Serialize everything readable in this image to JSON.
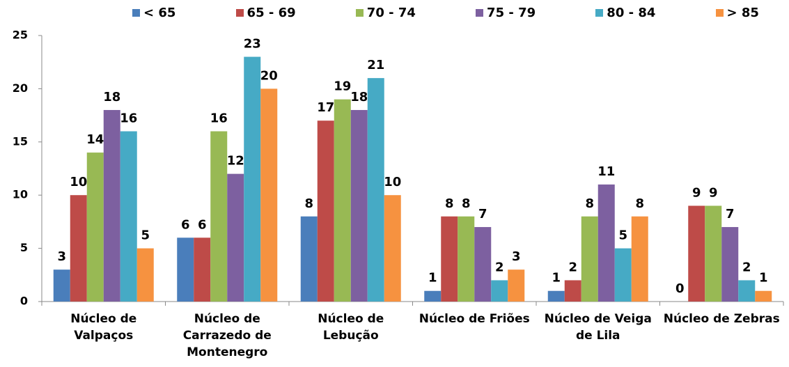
{
  "chart_data": {
    "type": "bar",
    "categories": [
      "Núcleo de Valpaços",
      "Núcleo de Carrazedo de Montenegro",
      "Núcleo de Lebução",
      "Núcleo de Friões",
      "Núcleo de Veiga de Lila",
      "Núcleo de Zebras"
    ],
    "series": [
      {
        "name": "< 65",
        "color": "#4a7ebb",
        "values": [
          3,
          6,
          8,
          1,
          1,
          0
        ]
      },
      {
        "name": "65 - 69",
        "color": "#be4b48",
        "values": [
          10,
          6,
          17,
          8,
          2,
          9
        ]
      },
      {
        "name": "70 - 74",
        "color": "#98b954",
        "values": [
          14,
          16,
          19,
          8,
          8,
          9
        ]
      },
      {
        "name": "75 - 79",
        "color": "#7d60a0",
        "values": [
          18,
          12,
          18,
          7,
          11,
          7
        ]
      },
      {
        "name": "80 - 84",
        "color": "#46aac5",
        "values": [
          16,
          23,
          21,
          2,
          5,
          2
        ]
      },
      {
        "name": "> 85",
        "color": "#f69240",
        "values": [
          5,
          20,
          10,
          3,
          8,
          1
        ]
      }
    ],
    "ylim": [
      0,
      25
    ],
    "yticks": [
      0,
      5,
      10,
      15,
      20,
      25
    ],
    "legend": "top",
    "grid": false
  }
}
